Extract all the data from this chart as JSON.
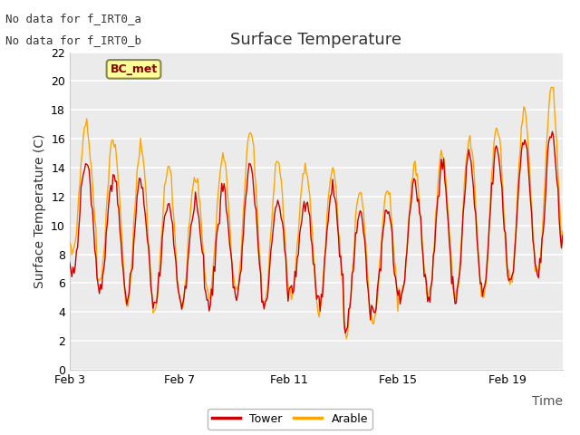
{
  "title": "Surface Temperature",
  "xlabel": "Time",
  "ylabel": "Surface Temperature (C)",
  "ylim": [
    0,
    22
  ],
  "yticks": [
    0,
    2,
    4,
    6,
    8,
    10,
    12,
    14,
    16,
    18,
    20,
    22
  ],
  "xtick_labels": [
    "Feb 3",
    "Feb 7",
    "Feb 11",
    "Feb 15",
    "Feb 19"
  ],
  "xtick_positions": [
    0,
    4,
    8,
    12,
    16
  ],
  "annotation_line1": "No data for f_IRT0_a",
  "annotation_line2": "No data for f_IRT0_b",
  "legend_label1": "Tower",
  "legend_label2": "Arable",
  "legend_color1": "#cc0000",
  "legend_color2": "#FFA500",
  "bc_met_label": "BC_met",
  "bc_met_bg": "#FFFF99",
  "bc_met_border": "#888844",
  "bc_met_text_color": "#880000",
  "tower_color": "#cc0000",
  "arable_color": "#FFA500",
  "fig_bg": "#ffffff",
  "plot_bg": "#ebebeb",
  "grid_color": "#ffffff",
  "title_fontsize": 13,
  "axis_label_fontsize": 10,
  "tick_fontsize": 9,
  "note_fontsize": 9,
  "n_points": 432,
  "xlim": [
    0,
    18
  ]
}
